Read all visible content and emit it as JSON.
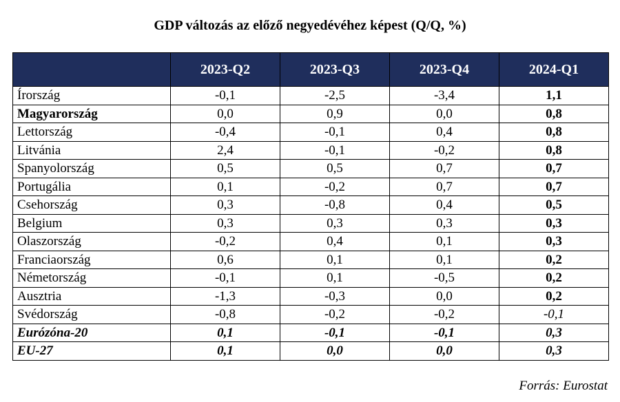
{
  "title": "GDP változás az előző negyedévéhez képest (Q/Q, %)",
  "columns": [
    "",
    "2023-Q2",
    "2023-Q3",
    "2023-Q4",
    "2024-Q1"
  ],
  "rows": [
    {
      "country": "Írország",
      "values": [
        "-0,1",
        "-2,5",
        "-3,4",
        "1,1"
      ]
    },
    {
      "country": "Magyarország",
      "values": [
        "0,0",
        "0,9",
        "0,0",
        "0,8"
      ]
    },
    {
      "country": "Lettország",
      "values": [
        "-0,4",
        "-0,1",
        "0,4",
        "0,8"
      ]
    },
    {
      "country": "Litvánia",
      "values": [
        "2,4",
        "-0,1",
        "-0,2",
        "0,8"
      ]
    },
    {
      "country": "Spanyolország",
      "values": [
        "0,5",
        "0,5",
        "0,7",
        "0,7"
      ]
    },
    {
      "country": "Portugália",
      "values": [
        "0,1",
        "-0,2",
        "0,7",
        "0,7"
      ]
    },
    {
      "country": "Csehország",
      "values": [
        "0,3",
        "-0,8",
        "0,4",
        "0,5"
      ]
    },
    {
      "country": "Belgium",
      "values": [
        "0,3",
        "0,3",
        "0,3",
        "0,3"
      ]
    },
    {
      "country": "Olaszország",
      "values": [
        "-0,2",
        "0,4",
        "0,1",
        "0,3"
      ]
    },
    {
      "country": "Franciaország",
      "values": [
        "0,6",
        "0,1",
        "0,1",
        "0,2"
      ]
    },
    {
      "country": "Németország",
      "values": [
        "-0,1",
        "0,1",
        "-0,5",
        "0,2"
      ]
    },
    {
      "country": "Ausztria",
      "values": [
        "-1,3",
        "-0,3",
        "0,0",
        "0,2"
      ]
    },
    {
      "country": "Svédország",
      "values": [
        "-0,8",
        "-0,2",
        "-0,2",
        "-0,1"
      ]
    },
    {
      "country": "Eurózóna-20",
      "values": [
        "0,1",
        "-0,1",
        "-0,1",
        "0,3"
      ]
    },
    {
      "country": "EU-27",
      "values": [
        "0,1",
        "0,0",
        "0,0",
        "0,3"
      ]
    }
  ],
  "source": "Forrás: Eurostat",
  "colors": {
    "header_bg": "#1f2e5c",
    "header_text": "#ffffff"
  }
}
